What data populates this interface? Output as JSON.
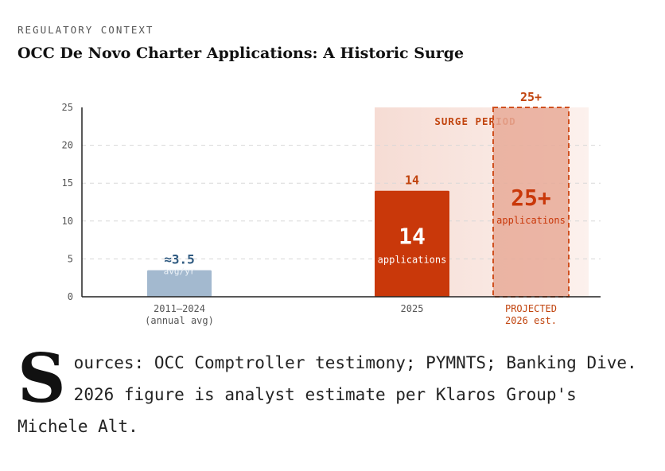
{
  "header": {
    "eyebrow": "REGULATORY CONTEXT",
    "title": "OCC De Novo Charter Applications: A Historic Surge"
  },
  "chart_data": {
    "type": "bar",
    "categories": [
      {
        "line1": "2011–2024",
        "line2": "(annual avg)"
      },
      {
        "line1": "2025",
        "line2": ""
      },
      {
        "line1": "PROJECTED",
        "line2": "2026 est."
      }
    ],
    "values": [
      3.5,
      14,
      25
    ],
    "top_labels": [
      "≈3.5",
      "14",
      "25+"
    ],
    "inner_big": [
      "",
      "14",
      "25+"
    ],
    "inner_small": [
      "avg/yr",
      "applications",
      "applications"
    ],
    "bar_colors": [
      "#a3b9cf",
      "#c9380a",
      "#e8aa98"
    ],
    "projected": [
      false,
      false,
      true
    ],
    "ylim": [
      0,
      25
    ],
    "yticks": [
      0,
      5,
      10,
      15,
      20,
      25
    ],
    "annotation": "SURGE PERIOD",
    "grid": true
  },
  "source": {
    "dropcap": "S",
    "text": "ources: OCC Comptroller testimony; PYMNTS; Banking Dive. 2026 figure is analyst estimate per Klaros Group's Michele Alt."
  }
}
